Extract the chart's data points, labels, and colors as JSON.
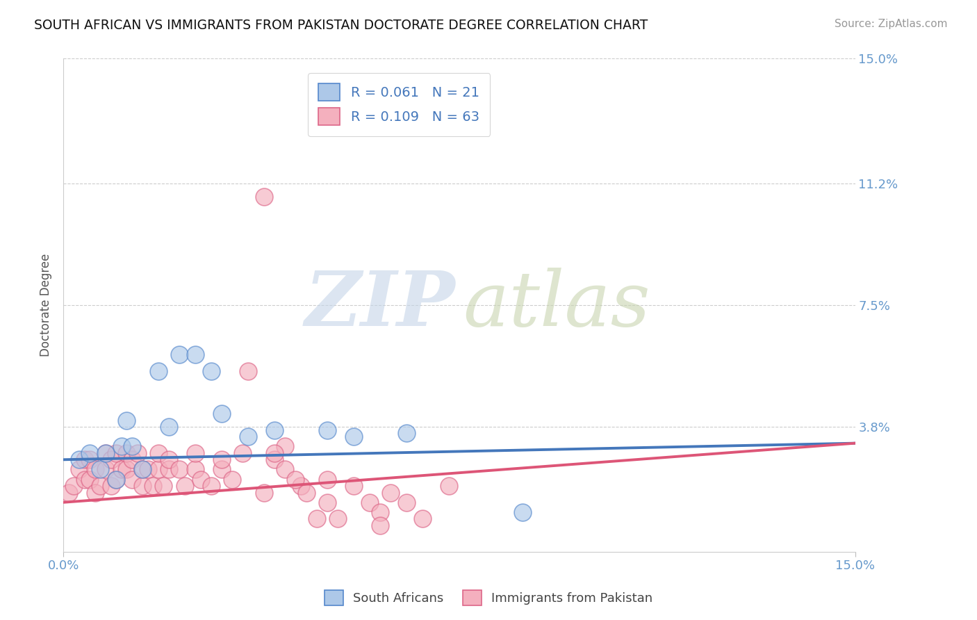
{
  "title": "SOUTH AFRICAN VS IMMIGRANTS FROM PAKISTAN DOCTORATE DEGREE CORRELATION CHART",
  "source": "Source: ZipAtlas.com",
  "ylabel": "Doctorate Degree",
  "xlim": [
    0.0,
    0.15
  ],
  "ylim": [
    0.0,
    0.15
  ],
  "yticks": [
    0.0,
    0.038,
    0.075,
    0.112,
    0.15
  ],
  "ytick_labels": [
    "",
    "3.8%",
    "7.5%",
    "11.2%",
    "15.0%"
  ],
  "grid_yticks": [
    0.15,
    0.112,
    0.075,
    0.038
  ],
  "legend_blue_label": "R = 0.061   N = 21",
  "legend_pink_label": "R = 0.109   N = 63",
  "series1_label": "South Africans",
  "series2_label": "Immigrants from Pakistan",
  "blue_fill": "#adc8e8",
  "pink_fill": "#f4b0be",
  "blue_edge": "#5588cc",
  "pink_edge": "#dd6688",
  "blue_line": "#4477bb",
  "pink_line": "#dd5577",
  "legend_text_color": "#4477bb",
  "title_color": "#111111",
  "tick_color": "#6699cc",
  "blue_trend": [
    0.028,
    0.033
  ],
  "pink_trend": [
    0.015,
    0.033
  ],
  "blue_scatter_x": [
    0.003,
    0.005,
    0.007,
    0.008,
    0.01,
    0.011,
    0.012,
    0.013,
    0.015,
    0.018,
    0.02,
    0.022,
    0.025,
    0.028,
    0.03,
    0.035,
    0.04,
    0.05,
    0.055,
    0.065,
    0.087
  ],
  "blue_scatter_y": [
    0.028,
    0.03,
    0.025,
    0.03,
    0.022,
    0.032,
    0.04,
    0.032,
    0.025,
    0.055,
    0.038,
    0.06,
    0.06,
    0.055,
    0.042,
    0.035,
    0.037,
    0.037,
    0.035,
    0.036,
    0.012
  ],
  "pink_scatter_x": [
    0.001,
    0.002,
    0.003,
    0.004,
    0.004,
    0.005,
    0.005,
    0.006,
    0.006,
    0.007,
    0.008,
    0.008,
    0.009,
    0.009,
    0.01,
    0.01,
    0.011,
    0.012,
    0.012,
    0.013,
    0.013,
    0.014,
    0.015,
    0.015,
    0.016,
    0.017,
    0.018,
    0.018,
    0.019,
    0.02,
    0.02,
    0.022,
    0.023,
    0.025,
    0.025,
    0.026,
    0.028,
    0.03,
    0.03,
    0.032,
    0.034,
    0.035,
    0.038,
    0.04,
    0.042,
    0.045,
    0.048,
    0.05,
    0.052,
    0.055,
    0.058,
    0.06,
    0.062,
    0.065,
    0.068,
    0.073,
    0.05,
    0.06,
    0.038,
    0.04,
    0.042,
    0.044,
    0.046
  ],
  "pink_scatter_y": [
    0.018,
    0.02,
    0.025,
    0.022,
    0.028,
    0.022,
    0.028,
    0.018,
    0.025,
    0.02,
    0.025,
    0.03,
    0.02,
    0.028,
    0.022,
    0.03,
    0.025,
    0.025,
    0.03,
    0.022,
    0.028,
    0.03,
    0.02,
    0.025,
    0.025,
    0.02,
    0.025,
    0.03,
    0.02,
    0.025,
    0.028,
    0.025,
    0.02,
    0.025,
    0.03,
    0.022,
    0.02,
    0.025,
    0.028,
    0.022,
    0.03,
    0.055,
    0.018,
    0.028,
    0.032,
    0.02,
    0.01,
    0.022,
    0.01,
    0.02,
    0.015,
    0.012,
    0.018,
    0.015,
    0.01,
    0.02,
    0.015,
    0.008,
    0.108,
    0.03,
    0.025,
    0.022,
    0.018
  ]
}
